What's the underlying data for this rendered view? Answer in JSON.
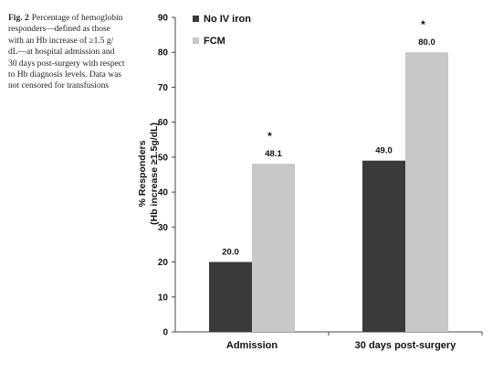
{
  "caption": {
    "label": "Fig. 2",
    "lines": [
      "Percentage of hemoglobin",
      "responders—defined as those",
      "with an Hb increase of ≥1.5 g/",
      "dL—at hospital admission and",
      "30 days post-surgery with respect",
      "to Hb diagnosis levels. Data was",
      "not censored for transfusions"
    ]
  },
  "chart_data": {
    "type": "bar",
    "categories": [
      "Admission",
      "30 days post-surgery"
    ],
    "series": [
      {
        "name": "No IV iron",
        "values": [
          20.0,
          49.0
        ],
        "color": "#3a3a3a",
        "labels": [
          "20.0",
          "49.0"
        ]
      },
      {
        "name": "FCM",
        "values": [
          48.1,
          80.0
        ],
        "color": "#c8c8c8",
        "labels": [
          "48.1",
          "80.0"
        ]
      }
    ],
    "significance_marker": "*",
    "significant_categories": [
      0,
      1
    ],
    "ylabel_lines": [
      "% Responders",
      "(Hb increase ≥1.5g/dL)"
    ],
    "xlabel": "",
    "ylim": [
      0,
      90
    ],
    "yticks": [
      "0",
      "10",
      "20",
      "30",
      "40",
      "50",
      "60",
      "70",
      "80",
      "90"
    ],
    "grid": false,
    "legend_position": "top-left"
  }
}
